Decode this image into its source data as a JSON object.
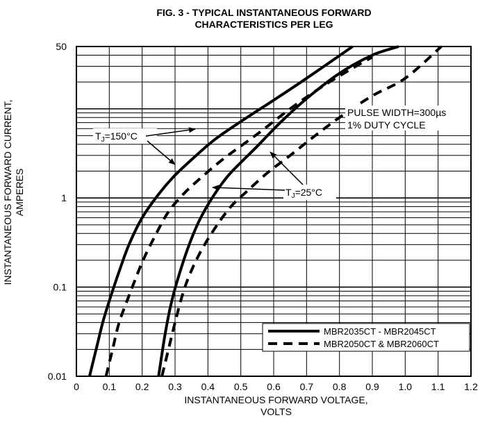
{
  "chart_data": {
    "type": "line",
    "title": [
      "FIG. 3 - TYPICAL INSTANTANEOUS FORWARD",
      "CHARACTERISTICS PER LEG"
    ],
    "xlabel": [
      "INSTANTANEOUS FORWARD VOLTAGE,",
      "VOLTS"
    ],
    "ylabel": [
      "INSTANTANEOUS FORWARD CURRENT,",
      "AMPERES"
    ],
    "xscale": "linear",
    "yscale": "log",
    "xlim": [
      0,
      1.2
    ],
    "ylim": [
      0.01,
      50
    ],
    "xticks": [
      "0",
      "0.1",
      "0.2",
      "0.3",
      "0.4",
      "0.5",
      "0.6",
      "0.7",
      "0.8",
      "0.9",
      "1.0",
      "1.1",
      "1.2"
    ],
    "yticks": [
      "0.01",
      "0.1",
      "1",
      "50"
    ],
    "grid": true,
    "legend": {
      "position": "bottom-right",
      "entries": [
        {
          "label": "MBR2035CT - MBR2045CT",
          "style": "solid"
        },
        {
          "label": "MBR2050CT & MBR2060CT",
          "style": "dashed"
        }
      ]
    },
    "annotations": {
      "pulse": [
        "PULSE WIDTH=300µs",
        "1% DUTY CYCLE"
      ],
      "tj150": {
        "prefix": "T",
        "sub": "J",
        "suffix": "=150°C"
      },
      "tj25": {
        "prefix": "T",
        "sub": "J",
        "suffix": "=25°C"
      }
    },
    "series": [
      {
        "condition": "TJ=150°C",
        "style": "solid",
        "x": [
          0.04,
          0.06,
          0.08,
          0.1,
          0.13,
          0.16,
          0.2,
          0.25,
          0.3,
          0.36,
          0.42,
          0.5,
          0.6,
          0.7,
          0.84
        ],
        "y": [
          0.01,
          0.02,
          0.04,
          0.07,
          0.15,
          0.3,
          0.6,
          1.1,
          1.8,
          2.9,
          4.5,
          7.2,
          12.5,
          22,
          50
        ]
      },
      {
        "condition": "TJ=150°C",
        "style": "dashed",
        "x": [
          0.09,
          0.11,
          0.13,
          0.16,
          0.2,
          0.24,
          0.28,
          0.33,
          0.38,
          0.45,
          0.55,
          0.65,
          0.75,
          0.85,
          0.9
        ],
        "y": [
          0.01,
          0.02,
          0.04,
          0.08,
          0.19,
          0.38,
          0.7,
          1.15,
          1.7,
          2.8,
          5.2,
          10,
          18,
          30,
          38
        ]
      },
      {
        "condition": "TJ=25°C",
        "style": "solid",
        "x": [
          0.25,
          0.27,
          0.29,
          0.32,
          0.35,
          0.38,
          0.42,
          0.46,
          0.5,
          0.55,
          0.62,
          0.7,
          0.8,
          0.9,
          0.98
        ],
        "y": [
          0.01,
          0.03,
          0.07,
          0.17,
          0.35,
          0.62,
          1.1,
          1.75,
          2.5,
          3.8,
          7,
          13,
          25,
          40,
          50
        ]
      },
      {
        "condition": "TJ=25°C",
        "style": "dashed",
        "x": [
          0.26,
          0.28,
          0.3,
          0.33,
          0.37,
          0.42,
          0.47,
          0.52,
          0.58,
          0.65,
          0.72,
          0.8,
          0.9,
          1.0,
          1.11
        ],
        "y": [
          0.01,
          0.02,
          0.04,
          0.1,
          0.22,
          0.45,
          0.8,
          1.2,
          1.9,
          3,
          4.8,
          8,
          14,
          22,
          50
        ]
      }
    ]
  }
}
